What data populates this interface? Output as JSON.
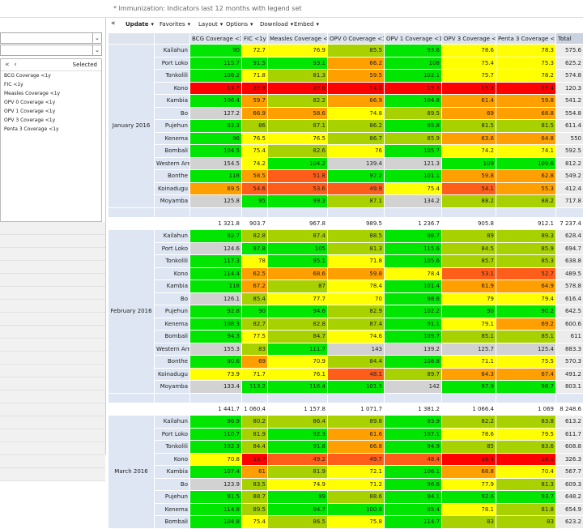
{
  "header": {
    "title": "* Immunization: Indicators last 12 months with legend set"
  },
  "toolbar": {
    "items": [
      "Update",
      "Favorites",
      "Layout",
      "Options",
      "Download",
      "Embed"
    ]
  },
  "sidebar": {
    "selected_label": "Selected",
    "items": [
      "BCG Coverage <1y",
      "FIC <1y",
      "Measles Coverage <1y",
      "OPV 0 Coverage <1y",
      "OPV 1 Coverage <1y",
      "OPV 3 Coverage <1y",
      "Penta 3 Coverage <1y"
    ]
  },
  "table": {
    "columns": [
      "BCG Coverage <1y",
      "FIC <1y",
      "Measles Coverage <1y",
      "OPV 0 Coverage <1y",
      "OPV 1 Coverage <1y",
      "OPV 3 Coverage <1y",
      "Penta 3 Coverage <1y",
      "Total"
    ],
    "legend_set": [
      {
        "start": 0,
        "end": 40,
        "color": "#ff0000"
      },
      {
        "start": 40,
        "end": 55,
        "color": "#ff5e1a"
      },
      {
        "start": 55,
        "end": 70,
        "color": "#ff9f00"
      },
      {
        "start": 70,
        "end": 80,
        "color": "#ffff00"
      },
      {
        "start": 80,
        "end": 90,
        "color": "#a8d100"
      },
      {
        "start": 90,
        "end": 120,
        "color": "#00e600"
      },
      {
        "start": 120,
        "end": 1000,
        "color": "#d2d2d2"
      }
    ],
    "groups": [
      {
        "period": "January 2016",
        "rows": [
          {
            "district": "Kailahun",
            "values": [
              90,
              72.7,
              76.9,
              85.5,
              93.6,
              78.6,
              78.3,
              575.6
            ]
          },
          {
            "district": "Port Loko",
            "values": [
              115.7,
              91.5,
              93.1,
              66.2,
              108,
              75.4,
              75.3,
              625.2
            ]
          },
          {
            "district": "Tonkolili",
            "values": [
              106.2,
              71.8,
              81.3,
              59.5,
              102.1,
              75.7,
              78.2,
              574.8
            ]
          },
          {
            "district": "Kono",
            "values": [
              14.7,
              20.9,
              20.6,
              14.1,
              19.3,
              15.3,
              15.4,
              120.3
            ]
          },
          {
            "district": "Kambia",
            "values": [
              106.4,
              59.7,
              82.2,
              66.9,
              104.8,
              61.4,
              59.8,
              541.2
            ]
          },
          {
            "district": "Bo",
            "values": [
              127.2,
              66.9,
              58.6,
              74.8,
              89.5,
              69,
              68.8,
              554.8
            ]
          },
          {
            "district": "Pujehun",
            "values": [
              93.3,
              86,
              87.1,
              86.2,
              95.8,
              81.5,
              81.5,
              611.4
            ]
          },
          {
            "district": "Kenema",
            "values": [
              96,
              76.5,
              76.5,
              86.7,
              85.9,
              63.6,
              64.8,
              550
            ]
          },
          {
            "district": "Bombali",
            "values": [
              104.5,
              75.4,
              82.6,
              76,
              105.7,
              74.2,
              74.1,
              592.5
            ]
          },
          {
            "district": "Western Area",
            "values": [
              154.5,
              74.2,
              104.2,
              139.4,
              121.3,
              109,
              109.6,
              812.2
            ]
          },
          {
            "district": "Bonthe",
            "values": [
              118,
              58.5,
              51.8,
              97.2,
              101.1,
              59.8,
              62.8,
              549.2
            ]
          },
          {
            "district": "Koinadugu",
            "values": [
              69.5,
              54.6,
              53.6,
              49.9,
              75.4,
              54.1,
              55.3,
              412.4
            ]
          },
          {
            "district": "Moyamba",
            "values": [
              125.8,
              95,
              99.3,
              87.1,
              134.2,
              88.2,
              88.2,
              717.8
            ]
          }
        ],
        "subtotals": [
          "1 321.8",
          "903.7",
          "967.8",
          "989.5",
          "1 236.7",
          "905.8",
          "912.1",
          "7 237.4"
        ]
      },
      {
        "period": "February 2016",
        "rows": [
          {
            "district": "Kailahun",
            "values": [
              92.7,
              82.8,
              87.4,
              88.5,
              98.7,
              89,
              89.3,
              628.4
            ]
          },
          {
            "district": "Port Loko",
            "values": [
              124.6,
              97.8,
              105,
              81.3,
              115.6,
              84.5,
              85.9,
              694.7
            ]
          },
          {
            "district": "Tonkolili",
            "values": [
              117.3,
              78,
              95.1,
              71.8,
              105.6,
              85.7,
              85.3,
              638.8
            ]
          },
          {
            "district": "Kono",
            "values": [
              114.4,
              62.5,
              68.6,
              59.8,
              78.4,
              53.1,
              52.7,
              489.5
            ]
          },
          {
            "district": "Kambia",
            "values": [
              118,
              67.2,
              87,
              78.4,
              101.4,
              61.9,
              64.9,
              578.8
            ]
          },
          {
            "district": "Bo",
            "values": [
              126.1,
              85.4,
              77.7,
              70,
              98.6,
              79,
              79.4,
              616.4
            ]
          },
          {
            "district": "Pujehun",
            "values": [
              92.8,
              90,
              94.6,
              82.9,
              102.2,
              90,
              90.2,
              642.5
            ]
          },
          {
            "district": "Kenema",
            "values": [
              108.3,
              82.7,
              82.8,
              87.4,
              91.1,
              79.1,
              69.2,
              600.6
            ]
          },
          {
            "district": "Bombali",
            "values": [
              94.3,
              77.5,
              84.7,
              74.6,
              109.7,
              85.1,
              85.1,
              611
            ]
          },
          {
            "district": "Western Area",
            "values": [
              155.3,
              83,
              111.7,
              143,
              139.2,
              125.7,
              125.4,
              883.3
            ]
          },
          {
            "district": "Bonthe",
            "values": [
              90.6,
              69,
              70.9,
              84.4,
              108.8,
              71.1,
              75.5,
              570.3
            ]
          },
          {
            "district": "Koinadugu",
            "values": [
              73.9,
              71.7,
              76.1,
              48.1,
              89.7,
              64.3,
              67.4,
              491.2
            ]
          },
          {
            "district": "Moyamba",
            "values": [
              133.4,
              113.2,
              116.4,
              101.5,
              142,
              97.9,
              98.7,
              803.1
            ]
          }
        ],
        "subtotals": [
          "1 441.7",
          "1 060.4",
          "1 157.8",
          "1 071.7",
          "1 381.2",
          "1 066.4",
          "1 069",
          "8 248.6"
        ]
      },
      {
        "period": "March 2016",
        "rows": [
          {
            "district": "Kailahun",
            "values": [
              96.9,
              80.2,
              86.4,
              89.8,
              93.9,
              82.2,
              83.8,
              613.2
            ]
          },
          {
            "district": "Port Loko",
            "values": [
              110.7,
              81.9,
              92.3,
              61.6,
              107.1,
              78.6,
              79.5,
              611.7
            ]
          },
          {
            "district": "Tonkolili",
            "values": [
              102.3,
              84.4,
              91.8,
              66.8,
              94.9,
              85,
              83.6,
              608.8
            ]
          },
          {
            "district": "Kono",
            "values": [
              70.8,
              33.7,
              49.2,
              49.7,
              48.4,
              36.4,
              38.1,
              326.3
            ]
          },
          {
            "district": "Kambia",
            "values": [
              107.4,
              61,
              81.9,
              72.1,
              106.1,
              68.8,
              70.4,
              567.7
            ]
          },
          {
            "district": "Bo",
            "values": [
              123.9,
              83.5,
              74.9,
              71.2,
              96.6,
              77.9,
              81.3,
              609.3
            ]
          },
          {
            "district": "Pujehun",
            "values": [
              91.5,
              88.7,
              99,
              88.6,
              94.1,
              92.6,
              93.7,
              648.2
            ]
          },
          {
            "district": "Kenema",
            "values": [
              114.8,
              89.5,
              94.7,
              100.6,
              95.4,
              78.1,
              81.8,
              654.9
            ]
          },
          {
            "district": "Bombali",
            "values": [
              104.8,
              75.4,
              86.5,
              75.8,
              114.7,
              83,
              83,
              623.2
            ]
          }
        ]
      }
    ]
  }
}
